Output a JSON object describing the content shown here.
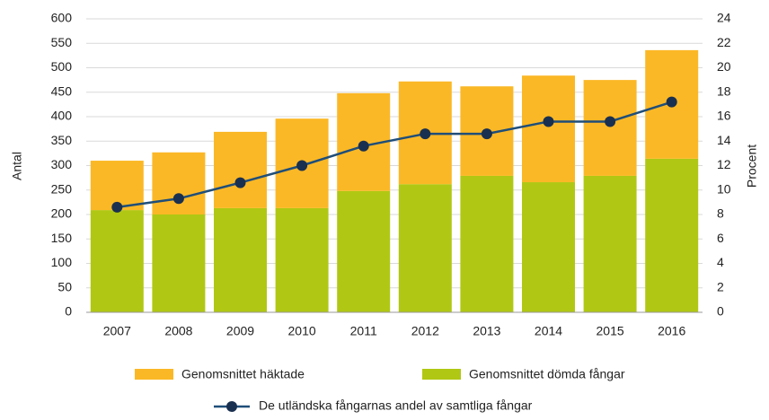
{
  "chart_data": {
    "type": "bar",
    "categories": [
      "2007",
      "2008",
      "2009",
      "2010",
      "2011",
      "2012",
      "2013",
      "2014",
      "2015",
      "2016"
    ],
    "series": [
      {
        "name": "Genomsnittet häktade",
        "color": "#fbb826",
        "values": [
          101,
          127,
          156,
          183,
          200,
          210,
          183,
          218,
          196,
          222
        ]
      },
      {
        "name": "Genomsnittet dömda fångar",
        "color": "#b0c813",
        "values": [
          209,
          200,
          213,
          213,
          248,
          262,
          279,
          266,
          279,
          314
        ]
      },
      {
        "name": "De utländska fångarnas andel av samtliga fångar",
        "color": "#1f4e79",
        "type": "line",
        "axis": "y2",
        "values": [
          8.6,
          9.3,
          10.6,
          12,
          13.6,
          14.6,
          14.6,
          15.6,
          15.6,
          17.2
        ]
      }
    ],
    "ylabel": "Antal",
    "y2label": "Procent",
    "ylim": [
      0,
      600
    ],
    "yticks": [
      0,
      50,
      100,
      150,
      200,
      250,
      300,
      350,
      400,
      450,
      500,
      550,
      600
    ],
    "y2lim": [
      0,
      24
    ],
    "y2ticks": [
      0,
      2,
      4,
      6,
      8,
      10,
      12,
      14,
      16,
      18,
      20,
      22,
      24
    ],
    "grid": true,
    "legend": "bottom",
    "stacked": true
  }
}
